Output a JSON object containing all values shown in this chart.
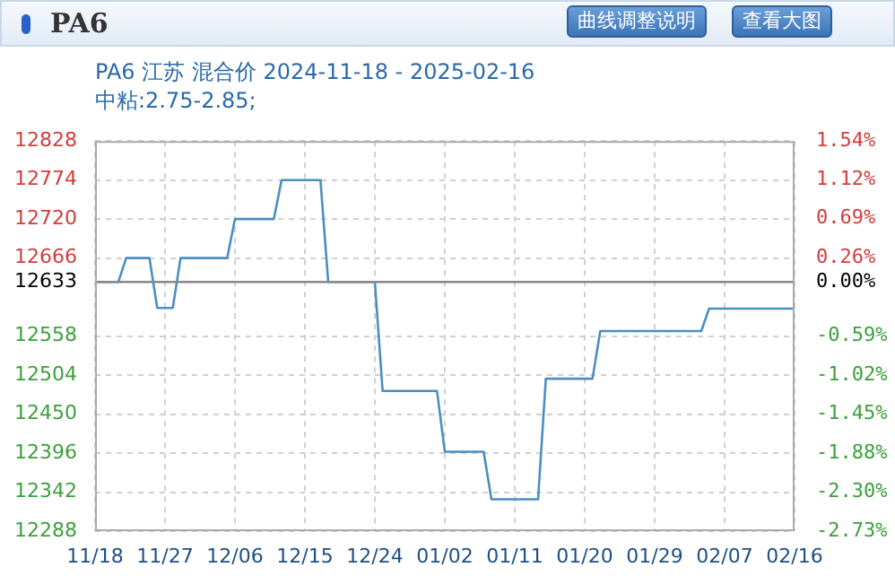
{
  "chart_data": {
    "type": "line",
    "title": "PA6 江苏 混合价 2024-11-18 - 2025-02-16",
    "subtitle": "中粘:2.75-2.85;",
    "annotations": [
      "PA6",
      "曲线调整说明",
      "查看大图"
    ],
    "x": [
      "2024-11-18",
      "2024-11-21",
      "2024-11-22",
      "2024-11-25",
      "2024-11-26",
      "2024-11-28",
      "2024-11-29",
      "2024-12-05",
      "2024-12-06",
      "2024-12-11",
      "2024-12-12",
      "2024-12-17",
      "2024-12-18",
      "2024-12-24",
      "2024-12-25",
      "2025-01-01",
      "2025-01-02",
      "2025-01-07",
      "2025-01-08",
      "2025-01-14",
      "2025-01-15",
      "2025-01-21",
      "2025-01-22",
      "2025-02-04",
      "2025-02-05",
      "2025-02-16"
    ],
    "series": [
      {
        "color": "#4a8fc0",
        "values": [
          12633,
          12633,
          12666,
          12666,
          12597,
          12597,
          12666,
          12666,
          12720,
          12720,
          12774,
          12774,
          12633,
          12633,
          12482,
          12482,
          12398,
          12398,
          12332,
          12332,
          12499,
          12499,
          12565,
          12565,
          12596,
          12596
        ]
      }
    ],
    "xlim": [
      "2024-11-18",
      "2025-02-16"
    ],
    "xticks": [
      {
        "value": "2024-11-18",
        "label": "11/18"
      },
      {
        "value": "2024-11-27",
        "label": "11/27"
      },
      {
        "value": "2024-12-06",
        "label": "12/06"
      },
      {
        "value": "2024-12-15",
        "label": "12/15"
      },
      {
        "value": "2024-12-24",
        "label": "12/24"
      },
      {
        "value": "2025-01-02",
        "label": "01/02"
      },
      {
        "value": "2025-01-11",
        "label": "01/11"
      },
      {
        "value": "2025-01-20",
        "label": "01/20"
      },
      {
        "value": "2025-01-29",
        "label": "01/29"
      },
      {
        "value": "2025-02-07",
        "label": "02/07"
      },
      {
        "value": "2025-02-16",
        "label": "02/16"
      }
    ],
    "ylim": [
      12288,
      12828
    ],
    "yticks": [
      12288,
      12342,
      12396,
      12450,
      12504,
      12558,
      12633,
      12666,
      12720,
      12774,
      12828
    ],
    "y2lim": [
      -2.73,
      1.54
    ],
    "y2ticks": [
      {
        "value": -2.73,
        "label": "-2.73%"
      },
      {
        "value": -2.3,
        "label": "-2.30%"
      },
      {
        "value": -1.88,
        "label": "-1.88%"
      },
      {
        "value": -1.45,
        "label": "-1.45%"
      },
      {
        "value": -1.02,
        "label": "-1.02%"
      },
      {
        "value": -0.59,
        "label": "-0.59%"
      },
      {
        "value": 0,
        "label": "0.00%"
      },
      {
        "value": 0.26,
        "label": "0.26%"
      },
      {
        "value": 0.69,
        "label": "0.69%"
      },
      {
        "value": 1.12,
        "label": "1.12%"
      },
      {
        "value": 1.54,
        "label": "1.54%"
      }
    ],
    "ref_lines": [
      {
        "axis": "y",
        "value": 12633,
        "color": "#888888"
      }
    ],
    "grid": true,
    "legend": false,
    "marker": "none",
    "line_style": "solid"
  }
}
